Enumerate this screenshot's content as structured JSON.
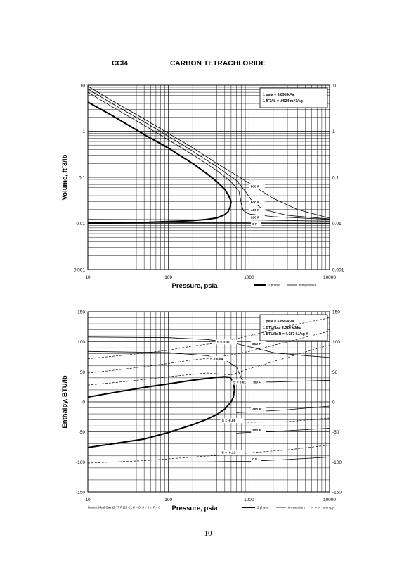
{
  "header": {
    "formula": "CCl4",
    "name": "CARBON TETRACHLORIDE"
  },
  "page_number": "10",
  "chart_data": [
    {
      "type": "line",
      "id": "volume",
      "ylabel": "Volume, ft^3/lb",
      "xlabel": "Pressure, psia",
      "xscale": "log",
      "yscale": "log",
      "xlim": [
        10,
        10000
      ],
      "ylim": [
        0.001,
        10
      ],
      "x_ticks": [
        {
          "v": 10,
          "t": "10"
        },
        {
          "v": 100,
          "t": "100"
        },
        {
          "v": 1000,
          "t": "1000"
        },
        {
          "v": 10000,
          "t": "10000"
        }
      ],
      "y_ticks": [
        {
          "v": 10,
          "t": "10"
        },
        {
          "v": 1,
          "t": "1"
        },
        {
          "v": 0.1,
          "t": "0.1"
        },
        {
          "v": 0.01,
          "t": "0.01"
        },
        {
          "v": 0.001,
          "t": "0.001"
        }
      ],
      "notes": [
        "1 psia = 6.895 kPa",
        "1 ft^3/lb = .0624 m^3/kg"
      ],
      "legend": {
        "two_phase": "2 phase",
        "temperature": "temperature"
      },
      "two_phase": {
        "vapor": [
          [
            10,
            4.3
          ],
          [
            20,
            2.2
          ],
          [
            50,
            0.85
          ],
          [
            100,
            0.43
          ],
          [
            200,
            0.2
          ],
          [
            300,
            0.12
          ],
          [
            400,
            0.08
          ],
          [
            500,
            0.055
          ],
          [
            560,
            0.04
          ],
          [
            600,
            0.03
          ]
        ],
        "liquid": [
          [
            600,
            0.03
          ],
          [
            580,
            0.022
          ],
          [
            550,
            0.018
          ],
          [
            500,
            0.0155
          ],
          [
            400,
            0.0132
          ],
          [
            300,
            0.0122
          ],
          [
            200,
            0.0115
          ],
          [
            100,
            0.011
          ],
          [
            50,
            0.0105
          ],
          [
            20,
            0.0102
          ],
          [
            10,
            0.01
          ]
        ]
      },
      "isotherms": [
        {
          "label": "800 F",
          "points": [
            [
              10,
              9.5
            ],
            [
              20,
              4.6
            ],
            [
              50,
              1.85
            ],
            [
              100,
              0.9
            ],
            [
              200,
              0.44
            ],
            [
              400,
              0.2
            ],
            [
              700,
              0.11
            ],
            [
              1000,
              0.075
            ],
            [
              2000,
              0.035
            ],
            [
              4000,
              0.02
            ],
            [
              10000,
              0.013
            ]
          ]
        },
        {
          "label": "600 F",
          "points": [
            [
              10,
              8.2
            ],
            [
              20,
              4
            ],
            [
              50,
              1.6
            ],
            [
              100,
              0.78
            ],
            [
              200,
              0.37
            ],
            [
              400,
              0.17
            ],
            [
              700,
              0.085
            ],
            [
              900,
              0.05
            ],
            [
              1100,
              0.03
            ],
            [
              1500,
              0.02
            ],
            [
              3000,
              0.015
            ],
            [
              10000,
              0.0125
            ]
          ]
        },
        {
          "label": "400 F",
          "points": [
            [
              10,
              7
            ],
            [
              20,
              3.4
            ],
            [
              50,
              1.35
            ],
            [
              100,
              0.65
            ],
            [
              200,
              0.31
            ],
            [
              400,
              0.14
            ],
            [
              600,
              0.08
            ],
            [
              750,
              0.05
            ],
            [
              800,
              0.028
            ],
            [
              850,
              0.019
            ],
            [
              1000,
              0.016
            ],
            [
              2000,
              0.014
            ],
            [
              10000,
              0.0122
            ]
          ]
        },
        {
          "label": "200 F",
          "points": [
            [
              10,
              0.0122
            ],
            [
              100,
              0.0121
            ],
            [
              1000,
              0.0119
            ],
            [
              10000,
              0.0112
            ]
          ]
        },
        {
          "label": "0 F",
          "points": [
            [
              10,
              0.0104
            ],
            [
              100,
              0.0104
            ],
            [
              1000,
              0.0103
            ],
            [
              10000,
              0.0101
            ]
          ]
        }
      ],
      "isotherm_labels": [
        {
          "t": "800 F",
          "x": 1050,
          "y": 0.06
        },
        {
          "t": "600 F",
          "x": 1050,
          "y": 0.027
        },
        {
          "t": "400 F",
          "x": 1050,
          "y": 0.0185
        },
        {
          "t": "200 F",
          "x": 1050,
          "y": 0.0128
        },
        {
          "t": "0 F",
          "x": 1100,
          "y": 0.0091
        }
      ]
    },
    {
      "type": "line",
      "id": "enthalpy",
      "ylabel": "Enthalpy, BTU/lb",
      "xlabel": "Pressure, psia",
      "xscale": "log",
      "yscale": "linear",
      "xlim": [
        10,
        10000
      ],
      "ylim": [
        -150,
        150
      ],
      "x_ticks": [
        {
          "v": 10,
          "t": "10"
        },
        {
          "v": 100,
          "t": "100"
        },
        {
          "v": 1000,
          "t": "1000"
        },
        {
          "v": 10000,
          "t": "10000"
        }
      ],
      "y_ticks": [
        {
          "v": 150,
          "t": "150"
        },
        {
          "v": 100,
          "t": "100"
        },
        {
          "v": 50,
          "t": "50"
        },
        {
          "v": 0,
          "t": "0"
        },
        {
          "v": -50,
          "t": "-50"
        },
        {
          "v": -100,
          "t": "-100"
        },
        {
          "v": -150,
          "t": "-150"
        }
      ],
      "notes": [
        "1 psia = 6.895 kPa",
        "1 BTU/lb = 2.326 kJ/kg",
        "1 BTU/lb R = 4.187 kJ/kg K"
      ],
      "footnote": "Datum: Ideal Gas @ 77 F (25 C), H = 0, S = 0 in F = 0",
      "legend": {
        "two_phase": "2 phase",
        "temperature": "temperature",
        "entropy": "entropy"
      },
      "two_phase": {
        "vapor": [
          [
            10,
            8
          ],
          [
            20,
            15
          ],
          [
            50,
            24
          ],
          [
            100,
            30
          ],
          [
            200,
            36
          ],
          [
            300,
            39
          ],
          [
            400,
            41
          ],
          [
            500,
            42
          ],
          [
            580,
            41
          ],
          [
            640,
            33
          ],
          [
            660,
            20
          ]
        ],
        "liquid": [
          [
            660,
            20
          ],
          [
            640,
            8
          ],
          [
            600,
            0
          ],
          [
            500,
            -12
          ],
          [
            400,
            -21
          ],
          [
            300,
            -29
          ],
          [
            200,
            -38
          ],
          [
            100,
            -51
          ],
          [
            50,
            -62
          ],
          [
            20,
            -70
          ],
          [
            10,
            -76
          ]
        ]
      },
      "isotherms": [
        {
          "label": "800 F",
          "points": [
            [
              10,
              108
            ],
            [
              100,
              107
            ],
            [
              300,
              104
            ],
            [
              600,
              99
            ],
            [
              1000,
              92
            ],
            [
              2000,
              82
            ],
            [
              5000,
              77
            ],
            [
              10000,
              74
            ]
          ]
        },
        {
          "label": "600 F",
          "points": [
            [
              10,
              84
            ],
            [
              100,
              82
            ],
            [
              300,
              77
            ],
            [
              500,
              70
            ],
            [
              700,
              58
            ],
            [
              800,
              40
            ],
            [
              900,
              33
            ],
            [
              2000,
              33
            ],
            [
              10000,
              36
            ]
          ]
        },
        {
          "label": "400 F",
          "points": [
            [
              700,
              -18
            ],
            [
              1000,
              -17
            ],
            [
              3000,
              -13
            ],
            [
              10000,
              -7
            ]
          ]
        },
        {
          "label": "200 F",
          "points": [
            [
              700,
              -52
            ],
            [
              1000,
              -51
            ],
            [
              3000,
              -48
            ],
            [
              10000,
              -44
            ]
          ]
        },
        {
          "label": "0 F",
          "points": [
            [
              100,
              -100
            ],
            [
              300,
              -100
            ],
            [
              700,
              -99
            ],
            [
              1000,
              -99
            ],
            [
              3000,
              -96
            ],
            [
              10000,
              -92
            ]
          ]
        }
      ],
      "entropy_lines": [
        {
          "label": "S = 0.07",
          "points": [
            [
              10,
              72
            ],
            [
              30,
              78
            ],
            [
              100,
              86
            ],
            [
              200,
              93
            ],
            [
              400,
              98
            ],
            [
              1000,
              110
            ],
            [
              3000,
              126
            ],
            [
              10000,
              140
            ]
          ]
        },
        {
          "label": "S = 0.04",
          "points": [
            [
              10,
              48
            ],
            [
              30,
              55
            ],
            [
              100,
              64
            ],
            [
              200,
              70
            ],
            [
              400,
              74
            ],
            [
              1000,
              84
            ],
            [
              3000,
              100
            ],
            [
              10000,
              118
            ]
          ]
        },
        {
          "label": "S = 0.01",
          "points": [
            [
              10,
              28
            ],
            [
              30,
              34
            ],
            [
              100,
              42
            ],
            [
              300,
              48
            ],
            [
              600,
              45
            ],
            [
              1000,
              55
            ],
            [
              3000,
              74
            ],
            [
              10000,
              95
            ]
          ]
        },
        {
          "label": "S = -0.05",
          "points": [
            [
              700,
              -33
            ],
            [
              1000,
              -34
            ],
            [
              3000,
              -33
            ],
            [
              10000,
              -27
            ]
          ]
        },
        {
          "label": "S = -0.12",
          "points": [
            [
              10,
              -102
            ],
            [
              50,
              -98
            ],
            [
              200,
              -92
            ],
            [
              500,
              -88
            ],
            [
              1000,
              -85
            ],
            [
              3000,
              -80
            ],
            [
              10000,
              -72
            ]
          ]
        }
      ],
      "isotherm_labels": [
        {
          "t": "800 F",
          "x": 1100,
          "y": 95
        },
        {
          "t": "600 F",
          "x": 1100,
          "y": 31
        },
        {
          "t": "400 F",
          "x": 1100,
          "y": -14
        },
        {
          "t": "200 F",
          "x": 1100,
          "y": -49
        },
        {
          "t": "0 F",
          "x": 1100,
          "y": -97
        }
      ],
      "entropy_labels": [
        {
          "t": "S = 0.07",
          "x": 400,
          "y": 98
        },
        {
          "t": "S = 0.04",
          "x": 330,
          "y": 70
        },
        {
          "t": "S = 0.01",
          "x": 640,
          "y": 31
        },
        {
          "t": "S = -0.05",
          "x": 460,
          "y": -33
        },
        {
          "t": "S = -0.12",
          "x": 460,
          "y": -86
        }
      ]
    }
  ]
}
